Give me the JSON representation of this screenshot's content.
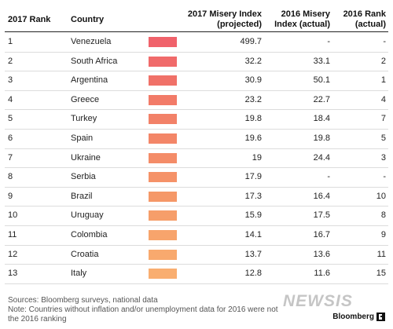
{
  "headers": {
    "rank_2017": "2017 Rank",
    "country": "Country",
    "misery_2017": [
      "2017 Misery Index",
      "(projected)"
    ],
    "misery_2016": [
      "2016 Misery",
      "Index (actual)"
    ],
    "rank_2016": [
      "2016 Rank",
      "(actual)"
    ]
  },
  "bar_colors": [
    "#f0626b",
    "#f06a6a",
    "#f07168",
    "#f27b68",
    "#f28168",
    "#f38668",
    "#f48c68",
    "#f59268",
    "#f59868",
    "#f69e6a",
    "#f7a46c",
    "#f8a96e",
    "#f9ae70"
  ],
  "chart_data": {
    "type": "table",
    "columns": [
      "2017 Rank",
      "Country",
      "2017 Misery Index (projected)",
      "2016 Misery Index (actual)",
      "2016 Rank (actual)"
    ],
    "rows": [
      {
        "rank": "1",
        "country": "Venezuela",
        "misery_2017": "499.7",
        "misery_2016": "-",
        "rank_2016": "-"
      },
      {
        "rank": "2",
        "country": "South Africa",
        "misery_2017": "32.2",
        "misery_2016": "33.1",
        "rank_2016": "2"
      },
      {
        "rank": "3",
        "country": "Argentina",
        "misery_2017": "30.9",
        "misery_2016": "50.1",
        "rank_2016": "1"
      },
      {
        "rank": "4",
        "country": "Greece",
        "misery_2017": "23.2",
        "misery_2016": "22.7",
        "rank_2016": "4"
      },
      {
        "rank": "5",
        "country": "Turkey",
        "misery_2017": "19.8",
        "misery_2016": "18.4",
        "rank_2016": "7"
      },
      {
        "rank": "6",
        "country": "Spain",
        "misery_2017": "19.6",
        "misery_2016": "19.8",
        "rank_2016": "5"
      },
      {
        "rank": "7",
        "country": "Ukraine",
        "misery_2017": "19",
        "misery_2016": "24.4",
        "rank_2016": "3"
      },
      {
        "rank": "8",
        "country": "Serbia",
        "misery_2017": "17.9",
        "misery_2016": "-",
        "rank_2016": "-"
      },
      {
        "rank": "9",
        "country": "Brazil",
        "misery_2017": "17.3",
        "misery_2016": "16.4",
        "rank_2016": "10"
      },
      {
        "rank": "10",
        "country": "Uruguay",
        "misery_2017": "15.9",
        "misery_2016": "17.5",
        "rank_2016": "8"
      },
      {
        "rank": "11",
        "country": "Colombia",
        "misery_2017": "14.1",
        "misery_2016": "16.7",
        "rank_2016": "9"
      },
      {
        "rank": "12",
        "country": "Croatia",
        "misery_2017": "13.7",
        "misery_2016": "13.6",
        "rank_2016": "11"
      },
      {
        "rank": "13",
        "country": "Italy",
        "misery_2017": "12.8",
        "misery_2016": "11.6",
        "rank_2016": "15"
      }
    ]
  },
  "footer": {
    "sources": "Sources: Bloomberg surveys, national data",
    "note_line1": "Note: Countries without inflation and/or unemployment data for 2016 were not",
    "note_line2": "the 2016 ranking",
    "brand": "Bloomberg",
    "watermark": "NEWSIS"
  }
}
